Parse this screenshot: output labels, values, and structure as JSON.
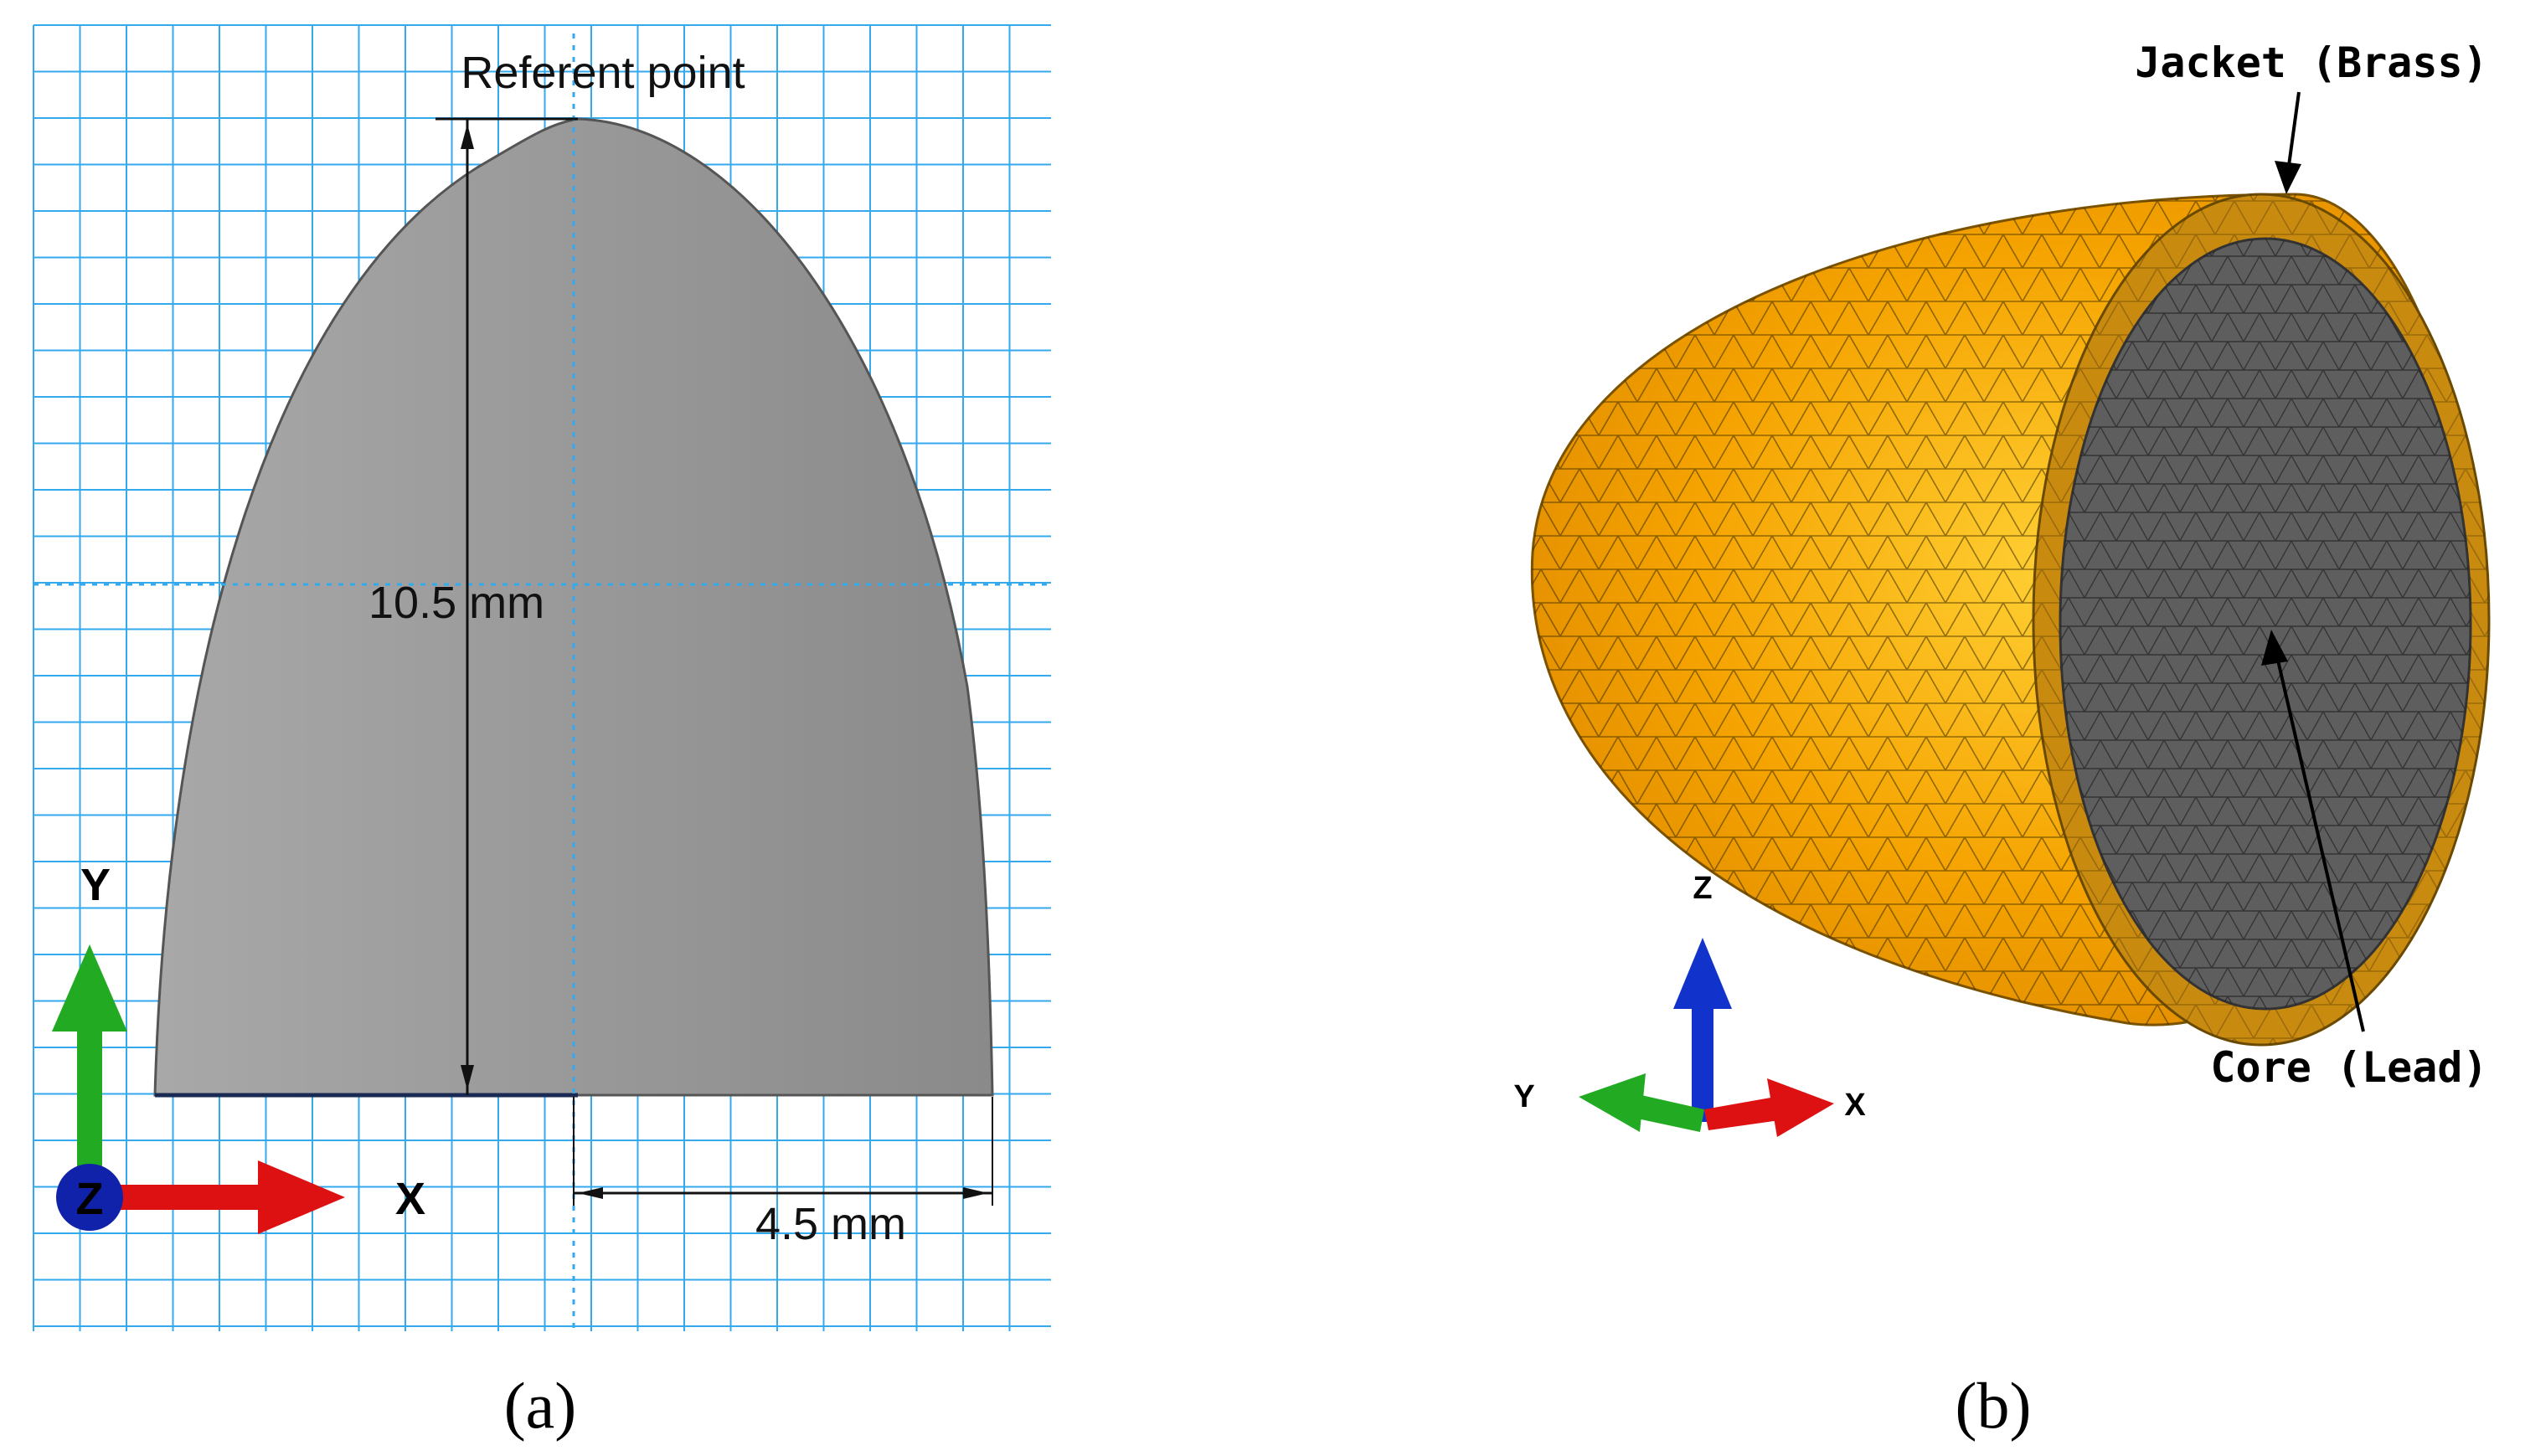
{
  "panel_a": {
    "referent_label": "Referent point",
    "height_dim": "10.5 mm",
    "radius_dim": "4.5 mm",
    "axis_y": "Y",
    "axis_x": "X",
    "axis_z": "Z",
    "caption": "(a)",
    "colors": {
      "grid": "#33aaee",
      "body": "#9a9a9a",
      "axis_y": "#22aa22",
      "axis_x": "#dd1111",
      "axis_z": "#1122aa"
    }
  },
  "panel_b": {
    "jacket_label": "Jacket (Brass)",
    "core_label": "Core (Lead)",
    "axis_z": "Z",
    "axis_y": "Y",
    "axis_x": "X",
    "caption": "(b)",
    "colors": {
      "jacket": "#f5a300",
      "jacket_ring": "#c98a10",
      "core": "#5e5e5e",
      "axis_z": "#1133cc",
      "axis_y": "#22aa22",
      "axis_x": "#dd1111"
    }
  }
}
